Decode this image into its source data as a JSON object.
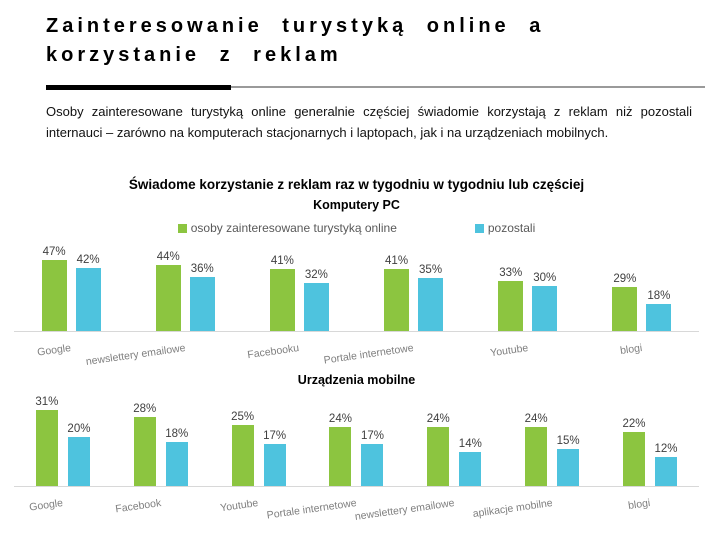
{
  "header": {
    "title_line1": "Zainteresowanie turystyką online a",
    "title_line2": "korzystanie z reklam",
    "intro": "Osoby zainteresowane turystyką online generalnie częściej świadomie korzystają z reklam niż pozostali internauci – zarówno na komputerach stacjonarnych i laptopach, jak i na urządzeniach mobilnych."
  },
  "section_title": "Świadome korzystanie z reklam raz w tygodniu w tygodniu lub częściej",
  "legend": {
    "series1": "osoby zainteresowane turystyką online",
    "series2": "pozostali"
  },
  "colors": {
    "green": "#8CC540",
    "blue": "#4EC3DE",
    "value_label": "#404040",
    "category_label": "#7F7F7F",
    "axis_line": "#D8D8D8",
    "divider_black": "#000000",
    "divider_gray": "#9A9A9A"
  },
  "chart_data": [
    {
      "type": "bar",
      "title": "Komputery PC",
      "categories": [
        "Google",
        "newslettery emailowe",
        "Facebooku",
        "Portale internetowe",
        "Youtube",
        "blogi"
      ],
      "series": [
        {
          "name": "osoby zainteresowane turystyką online",
          "color": "#8CC540",
          "values": [
            47,
            44,
            41,
            41,
            33,
            29
          ]
        },
        {
          "name": "pozostali",
          "color": "#4EC3DE",
          "values": [
            42,
            36,
            32,
            35,
            30,
            18
          ]
        }
      ],
      "value_suffix": "%",
      "ylim": [
        0,
        50
      ],
      "grid": false,
      "legend_position": "top"
    },
    {
      "type": "bar",
      "title": "Urządzenia mobilne",
      "categories": [
        "Google",
        "Facebook",
        "Youtube",
        "Portale internetowe",
        "newslettery emailowe",
        "aplikacje mobilne",
        "blogi"
      ],
      "series": [
        {
          "name": "osoby zainteresowane turystyką online",
          "color": "#8CC540",
          "values": [
            31,
            28,
            25,
            24,
            24,
            24,
            22
          ]
        },
        {
          "name": "pozostali",
          "color": "#4EC3DE",
          "values": [
            20,
            18,
            17,
            17,
            14,
            15,
            12
          ]
        }
      ],
      "value_suffix": "%",
      "ylim": [
        0,
        33
      ],
      "grid": false,
      "legend_position": "shared-top"
    }
  ]
}
